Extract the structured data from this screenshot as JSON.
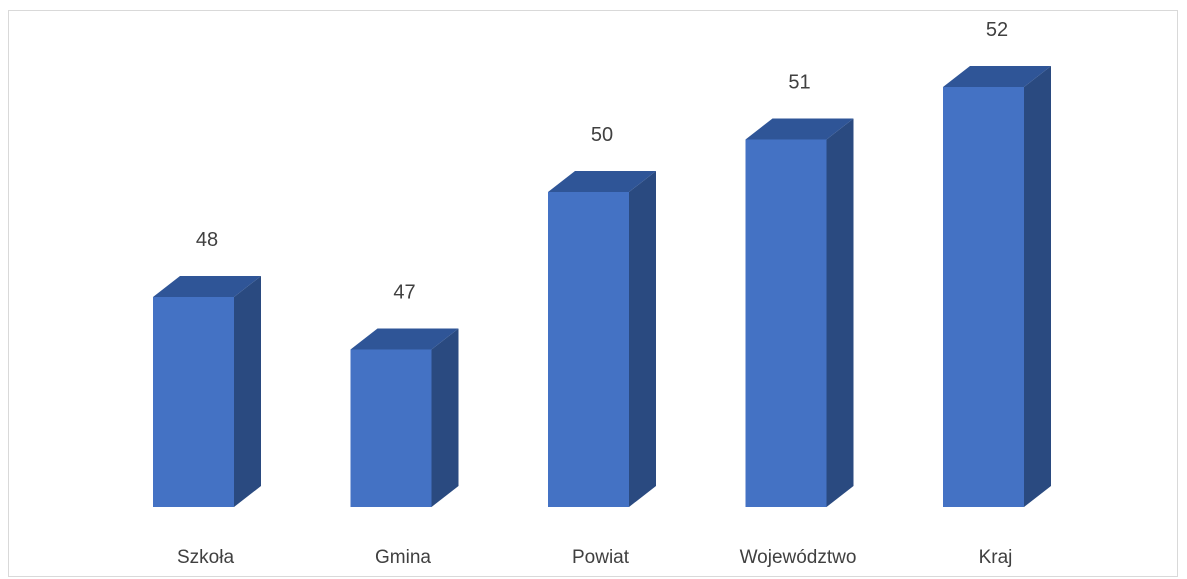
{
  "chart_data": {
    "type": "bar",
    "style": "3d-column",
    "categories": [
      "Szkoła",
      "Gmina",
      "Powiat",
      "Województwo",
      "Kraj"
    ],
    "values": [
      48,
      47,
      50,
      51,
      52
    ],
    "data_labels": [
      "48",
      "47",
      "50",
      "51",
      "52"
    ],
    "title": "",
    "xlabel": "",
    "ylabel": "",
    "ylim": [
      44,
      52
    ],
    "grid": false,
    "legend": "none",
    "colors": {
      "front": "#4472C4",
      "side": "#2A4A80",
      "top": "#2F5597"
    }
  }
}
